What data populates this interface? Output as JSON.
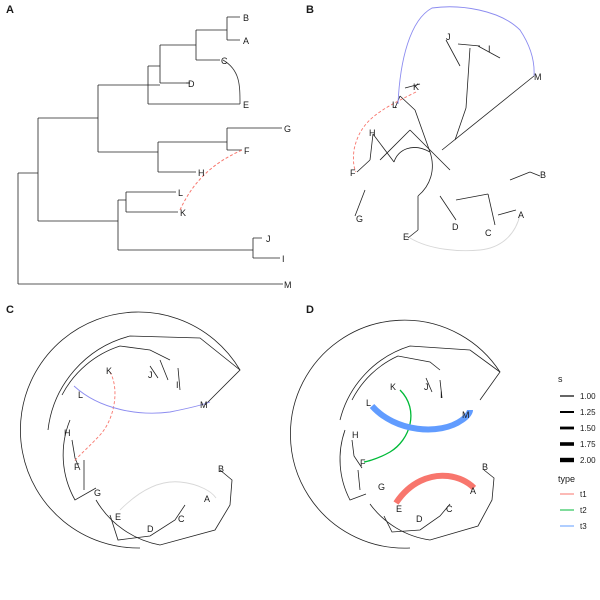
{
  "panels": {
    "A": {
      "label": "A",
      "tips": [
        "B",
        "A",
        "C",
        "D",
        "E",
        "G",
        "F",
        "H",
        "L",
        "K",
        "J",
        "I",
        "M"
      ]
    },
    "B": {
      "label": "B",
      "tips": [
        "J",
        "I",
        "M",
        "K",
        "H",
        "F",
        "G",
        "E",
        "D",
        "C",
        "A",
        "B",
        "L"
      ]
    },
    "C": {
      "label": "C",
      "tips": [
        "K",
        "J",
        "I",
        "L",
        "M",
        "H",
        "F",
        "G",
        "E",
        "D",
        "C",
        "A",
        "B"
      ]
    },
    "D": {
      "label": "D",
      "tips": [
        "K",
        "J",
        "I",
        "L",
        "M",
        "H",
        "F",
        "G",
        "E",
        "D",
        "C",
        "A",
        "B"
      ]
    }
  },
  "legend": {
    "size_title": "s",
    "size_items": [
      "1.00",
      "1.25",
      "1.50",
      "1.75",
      "2.00"
    ],
    "type_title": "type",
    "type_items": [
      {
        "label": "t1",
        "color": "#F8766D"
      },
      {
        "label": "t2",
        "color": "#00BA38"
      },
      {
        "label": "t3",
        "color": "#619CFF"
      }
    ]
  },
  "links": [
    {
      "from": "F",
      "to": "K",
      "type": "t1",
      "style_A": "dashed",
      "color": "#F8766D"
    },
    {
      "from": "E",
      "to": "A",
      "type": "t1",
      "color": "#F8766D"
    },
    {
      "from": "F",
      "to": "K",
      "type": "t2",
      "color": "#00BA38"
    },
    {
      "from": "L",
      "to": "M",
      "type": "t3",
      "color": "#619CFF"
    }
  ]
}
